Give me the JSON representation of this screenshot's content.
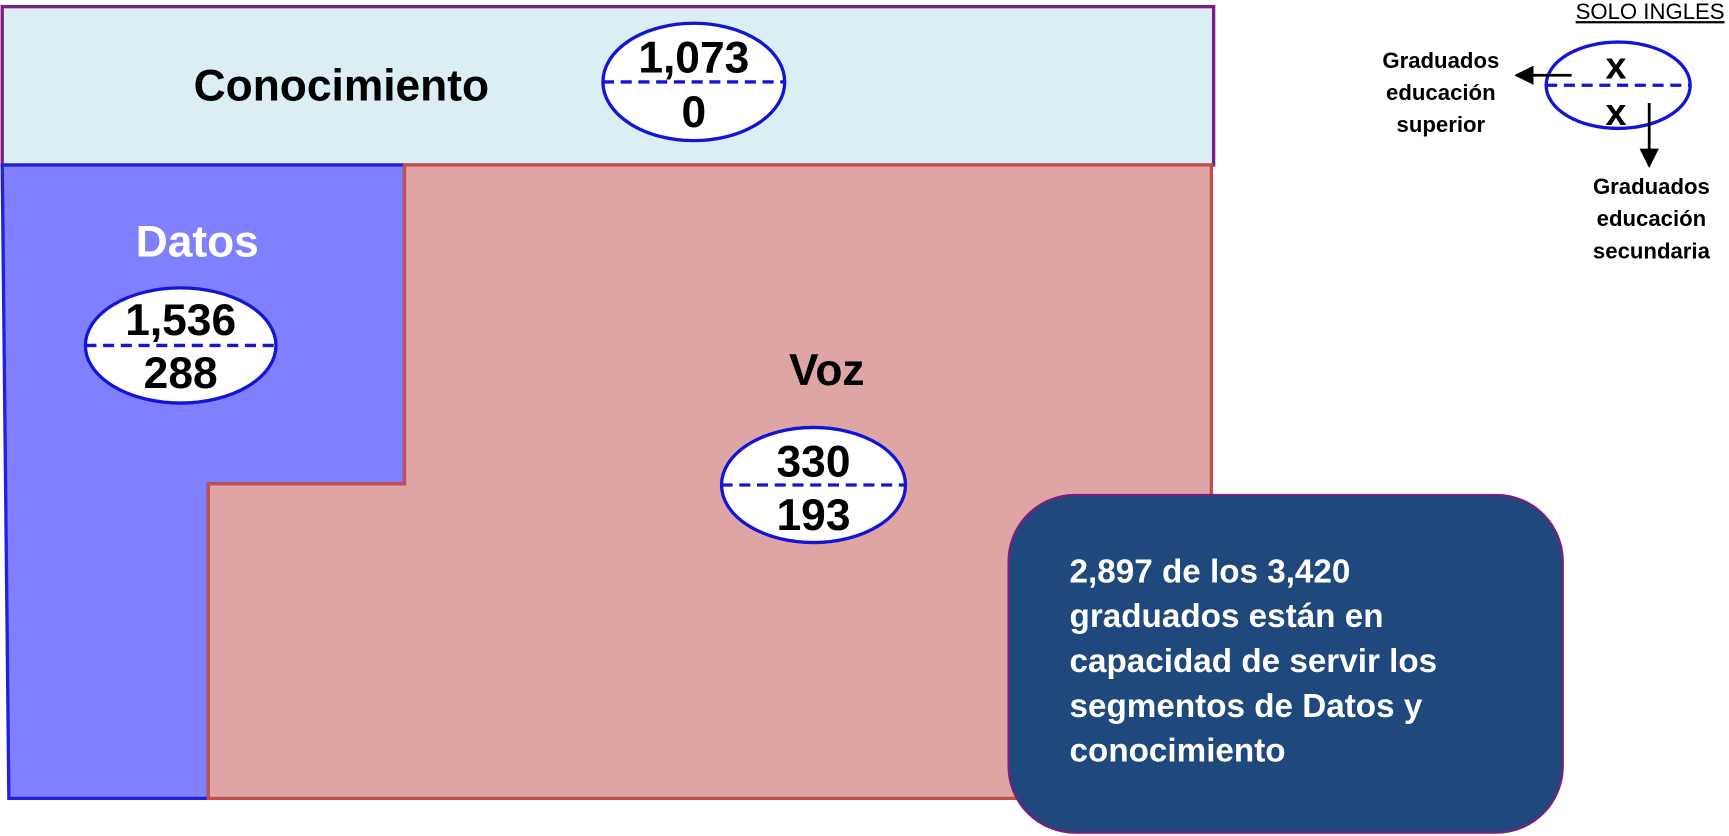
{
  "segments": [
    {
      "label": "Conocimiento",
      "top": "1,073",
      "bottom": "0"
    },
    {
      "label": "Datos",
      "top": "1,536",
      "bottom": "288"
    },
    {
      "label": "Voz",
      "top": "330",
      "bottom": "193"
    }
  ],
  "legend": {
    "title": "SOLO INGLES",
    "top": "x",
    "bottom": "x",
    "top_label": [
      "Graduados",
      "educación",
      "superior"
    ],
    "bottom_label": [
      "Graduados",
      "educación",
      "secundaria"
    ]
  },
  "callout": [
    "2,897 de los 3,420",
    "graduados están en",
    "capacidad de servir los",
    "segmentos de Datos  y",
    "conocimiento"
  ]
}
